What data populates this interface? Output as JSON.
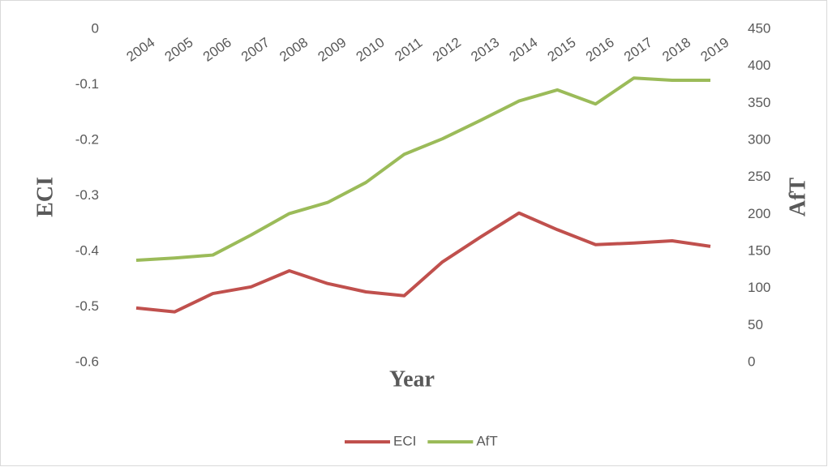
{
  "chart_data": {
    "type": "line",
    "x_label": "Year",
    "y_label": "ECI",
    "y2_label": "AfT",
    "categories": [
      "2004",
      "2005",
      "2006",
      "2007",
      "2008",
      "2009",
      "2010",
      "2011",
      "2012",
      "2013",
      "2014",
      "2015",
      "2016",
      "2017",
      "2018",
      "2019"
    ],
    "series": [
      {
        "name": "ECI",
        "color": "#c0504d",
        "values": [
          -0.502,
          -0.509,
          -0.476,
          -0.464,
          -0.435,
          -0.458,
          -0.473,
          -0.48,
          -0.419,
          -0.374,
          -0.331,
          -0.361,
          -0.388,
          -0.385,
          -0.381,
          -0.391
        ]
      },
      {
        "name": "AfT",
        "color": "#9bbb59",
        "axis": "y2",
        "values": [
          138,
          141,
          145,
          172,
          201,
          216,
          243,
          281,
          302,
          327,
          353,
          368,
          349,
          384,
          381,
          381
        ]
      }
    ],
    "ylim": [
      -0.6,
      0
    ],
    "yticks": [
      -0.6,
      -0.5,
      -0.4,
      -0.3,
      -0.2,
      -0.1,
      0
    ],
    "y2lim": [
      0,
      450
    ],
    "y2ticks": [
      0,
      50,
      100,
      150,
      200,
      250,
      300,
      350,
      400,
      450
    ],
    "legend": "bottom"
  }
}
